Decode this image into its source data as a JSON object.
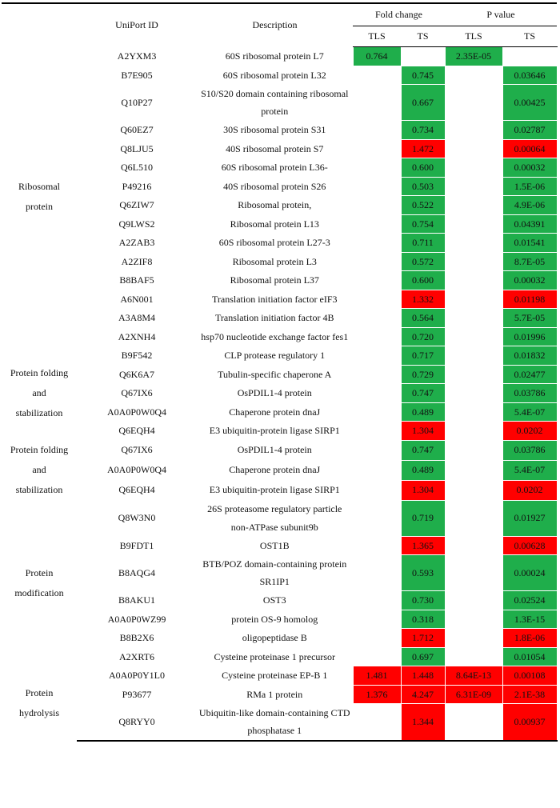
{
  "header": {
    "id": "UniPort ID",
    "description": "Description",
    "fold_change": "Fold change",
    "p_value": "P value",
    "tls": "TLS",
    "ts": "TS"
  },
  "groups": [
    {
      "label": "Ribosomal protein",
      "rows": [
        {
          "id": "A2YXM3",
          "description": "60S ribosomal protein L7",
          "tls_fc": "0.764",
          "tls_p": "2.35E-05",
          "tls_color": "#1fae4b"
        },
        {
          "id": "B7E905",
          "description": "60S ribosomal protein L32",
          "ts_fc": "0.745",
          "ts_p": "0.03646",
          "ts_color": "#1fae4b"
        },
        {
          "id": "Q10P27",
          "description": "S10/S20 domain containing ribosomal protein",
          "ts_fc": "0.667",
          "ts_p": "0.00425",
          "ts_color": "#1fae4b"
        },
        {
          "id": "Q60EZ7",
          "description": "30S ribosomal protein S31",
          "ts_fc": "0.734",
          "ts_p": "0.02787",
          "ts_color": "#1fae4b"
        },
        {
          "id": "Q8LJU5",
          "description": "40S ribosomal protein S7",
          "ts_fc": "1.472",
          "ts_p": "0.00064",
          "ts_color": "#ff0000"
        },
        {
          "id": "Q6L510",
          "description": "60S ribosomal protein L36-",
          "ts_fc": "0.600",
          "ts_p": "0.00032",
          "ts_color": "#1fae4b"
        },
        {
          "id": "P49216",
          "description": "40S ribosomal protein S26",
          "ts_fc": "0.503",
          "ts_p": "1.5E-06",
          "ts_color": "#1fae4b"
        },
        {
          "id": "Q6ZIW7",
          "description": "Ribosomal protein,",
          "ts_fc": "0.522",
          "ts_p": "4.9E-06",
          "ts_color": "#1fae4b"
        },
        {
          "id": "Q9LWS2",
          "description": "Ribosomal protein L13",
          "ts_fc": "0.754",
          "ts_p": "0.04391",
          "ts_color": "#1fae4b"
        },
        {
          "id": "A2ZAB3",
          "description": "60S ribosomal protein L27-3",
          "ts_fc": "0.711",
          "ts_p": "0.01541",
          "ts_color": "#1fae4b"
        },
        {
          "id": "A2ZIF8",
          "description": "Ribosomal protein L3",
          "ts_fc": "0.572",
          "ts_p": "8.7E-05",
          "ts_color": "#1fae4b"
        },
        {
          "id": "B8BAF5",
          "description": "Ribosomal protein L37",
          "ts_fc": "0.600",
          "ts_p": "0.00032",
          "ts_color": "#1fae4b"
        },
        {
          "id": "A6N001",
          "description": "Translation initiation factor eIF3",
          "ts_fc": "1.332",
          "ts_p": "0.01198",
          "ts_color": "#ff0000"
        },
        {
          "id": "A3A8M4",
          "description": "Translation initiation factor 4B",
          "ts_fc": "0.564",
          "ts_p": "5.7E-05",
          "ts_color": "#1fae4b"
        },
        {
          "id": "A2XNH4",
          "description": "hsp70 nucleotide exchange factor fes1",
          "ts_fc": "0.720",
          "ts_p": "0.01996",
          "ts_color": "#1fae4b"
        }
      ]
    },
    {
      "label": "Protein folding and stabilization",
      "rows": [
        {
          "id": "B9F542",
          "description": "CLP protease regulatory 1",
          "ts_fc": "0.717",
          "ts_p": "0.01832",
          "ts_color": "#1fae4b"
        },
        {
          "id": "Q6K6A7",
          "description": "Tubulin-specific chaperone A",
          "ts_fc": "0.729",
          "ts_p": "0.02477",
          "ts_color": "#1fae4b"
        },
        {
          "id": "Q67IX6",
          "description": "OsPDIL1-4 protein",
          "ts_fc": "0.747",
          "ts_p": "0.03786",
          "ts_color": "#1fae4b"
        },
        {
          "id": "A0A0P0W0Q4",
          "description": "Chaperone protein dnaJ",
          "ts_fc": "0.489",
          "ts_p": "5.4E-07",
          "ts_color": "#1fae4b"
        },
        {
          "id": "Q6EQH4",
          "description": "E3 ubiquitin-protein ligase SIRP1",
          "ts_fc": "1.304",
          "ts_p": "0.0202",
          "ts_color": "#ff0000"
        }
      ]
    },
    {
      "label": "Protein folding and stabilization",
      "rows": [
        {
          "id": "Q67IX6",
          "description": "OsPDIL1-4 protein",
          "ts_fc": "0.747",
          "ts_p": "0.03786",
          "ts_color": "#1fae4b"
        },
        {
          "id": "A0A0P0W0Q4",
          "description": "Chaperone protein dnaJ",
          "ts_fc": "0.489",
          "ts_p": "5.4E-07",
          "ts_color": "#1fae4b"
        },
        {
          "id": "Q6EQH4",
          "description": "E3 ubiquitin-protein ligase SIRP1",
          "ts_fc": "1.304",
          "ts_p": "0.0202",
          "ts_color": "#ff0000"
        }
      ]
    },
    {
      "label": "Protein modification",
      "rows": [
        {
          "id": "Q8W3N0",
          "description": "26S proteasome regulatory particle non-ATPase subunit9b",
          "ts_fc": "0.719",
          "ts_p": "0.01927",
          "ts_color": "#1fae4b"
        },
        {
          "id": "B9FDT1",
          "description": "OST1B",
          "ts_fc": "1.365",
          "ts_p": "0.00628",
          "ts_color": "#ff0000"
        },
        {
          "id": "B8AQG4",
          "description": "BTB/POZ domain-containing protein SR1IP1",
          "ts_fc": "0.593",
          "ts_p": "0.00024",
          "ts_color": "#1fae4b"
        },
        {
          "id": "B8AKU1",
          "description": "OST3",
          "ts_fc": "0.730",
          "ts_p": "0.02524",
          "ts_color": "#1fae4b"
        },
        {
          "id": "A0A0P0WZ99",
          "description": "protein OS-9 homolog",
          "ts_fc": "0.318",
          "ts_p": "1.3E-15",
          "ts_color": "#1fae4b"
        },
        {
          "id": "B8B2X6",
          "description": "oligopeptidase B",
          "ts_fc": "1.712",
          "ts_p": "1.8E-06",
          "ts_color": "#ff0000"
        },
        {
          "id": "A2XRT6",
          "description": "Cysteine proteinase 1 precursor",
          "ts_fc": "0.697",
          "ts_p": "0.01054",
          "ts_color": "#1fae4b"
        }
      ]
    },
    {
      "label": "Protein hydrolysis",
      "rows": [
        {
          "id": "A0A0P0Y1L0",
          "description": "Cysteine proteinase EP-B 1",
          "tls_fc": "1.481",
          "ts_fc": "1.448",
          "tls_p": "8.64E-13",
          "ts_p": "0.00108",
          "tls_color": "#ff0000",
          "ts_color": "#ff0000"
        },
        {
          "id": "P93677",
          "description": "RMa 1 protein",
          "tls_fc": "1.376",
          "ts_fc": "4.247",
          "tls_p": "6.31E-09",
          "ts_p": "2.1E-38",
          "tls_color": "#ff0000",
          "ts_color": "#ff0000"
        },
        {
          "id": "Q8RYY0",
          "description": "Ubiquitin-like domain-containing CTD phosphatase 1",
          "ts_fc": "1.344",
          "ts_p": "0.00937",
          "ts_color": "#ff0000"
        }
      ]
    }
  ]
}
